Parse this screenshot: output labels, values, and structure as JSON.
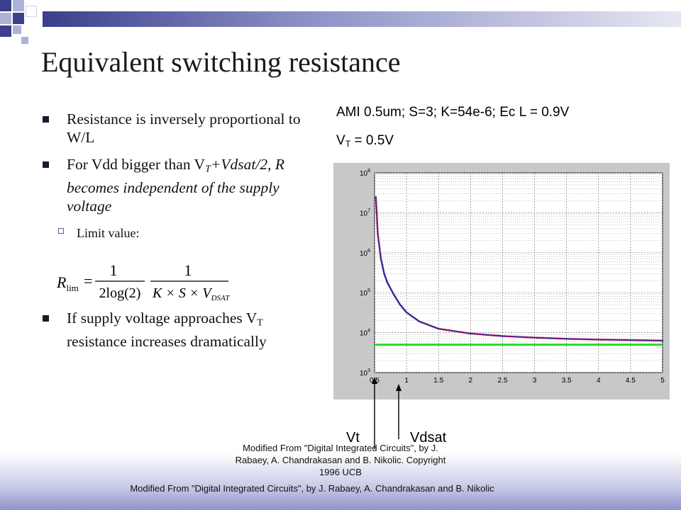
{
  "slide": {
    "title": "Equivalent switching resistance",
    "bullets": [
      {
        "text": "Resistance is inversely proportional to W/L"
      },
      {
        "pre": "For Vdd bigger than V",
        "sub": "T",
        "post": "+Vdsat/2, R becomes independent of the supply voltage"
      }
    ],
    "sub_bullet": "Limit value:",
    "formula": {
      "lhs": "R",
      "lhs_sub": "lim",
      "eq": "=",
      "num1": "1",
      "den1": "2log(2)",
      "num2": "1",
      "den2_pre": "K × S × V",
      "den2_sub": "DSAT"
    },
    "bullet3": {
      "pre": "If supply voltage approaches V",
      "sub": "T",
      "post": " resistance increases dramatically"
    },
    "param_line1": "AMI 0.5um; S=3; K=54e-6; Ec L = 0.9V",
    "param_line2_pre": "V",
    "param_line2_sub": "T",
    "param_line2_post": " = 0.5V",
    "arrow_label_vt": "Vt",
    "arrow_label_vdsat": "Vdsat",
    "footer_small": "Modified From \"Digital Integrated Circuits\", by J. Rabaey, A. Chandrakasan and B. Nikolic. Copyright 1996 UCB",
    "footer_main": "Modified From \"Digital Integrated Circuits\", by J. Rabaey, A. Chandrakasan and B. Nikolic"
  },
  "colors": {
    "curve": "#c01050",
    "curve_markers": "#2030a0",
    "limit_line": "#22dd22",
    "plot_bg": "#c8c8c8"
  },
  "chart_data": {
    "type": "line",
    "title": "",
    "xlabel": "",
    "ylabel": "",
    "xlim": [
      0.5,
      5
    ],
    "ylim": [
      1000,
      100000000
    ],
    "y_scale": "log",
    "grid": true,
    "x_ticks": [
      "0.5",
      "1",
      "1.5",
      "2",
      "2.5",
      "3",
      "3.5",
      "4",
      "4.5",
      "5"
    ],
    "y_ticks": [
      {
        "base": "10",
        "exp": "3",
        "value": 1000
      },
      {
        "base": "10",
        "exp": "4",
        "value": 10000
      },
      {
        "base": "10",
        "exp": "5",
        "value": 100000
      },
      {
        "base": "10",
        "exp": "6",
        "value": 1000000
      },
      {
        "base": "10",
        "exp": "7",
        "value": 10000000
      },
      {
        "base": "10",
        "exp": "8",
        "value": 100000000
      }
    ],
    "series": [
      {
        "x": [
          0.52,
          0.55,
          0.6,
          0.65,
          0.7,
          0.8,
          0.9,
          1.0,
          1.2,
          1.5,
          2.0,
          2.5,
          3.0,
          3.5,
          4.0,
          4.5,
          5.0
        ],
        "y": [
          25000000,
          3000000,
          700000,
          300000,
          180000,
          90000,
          50000,
          32000,
          19000,
          12500,
          9500,
          8200,
          7500,
          7000,
          6700,
          6500,
          6300
        ]
      },
      {
        "x": [
          0.5,
          5.0
        ],
        "y": [
          5000,
          5000
        ]
      }
    ]
  }
}
